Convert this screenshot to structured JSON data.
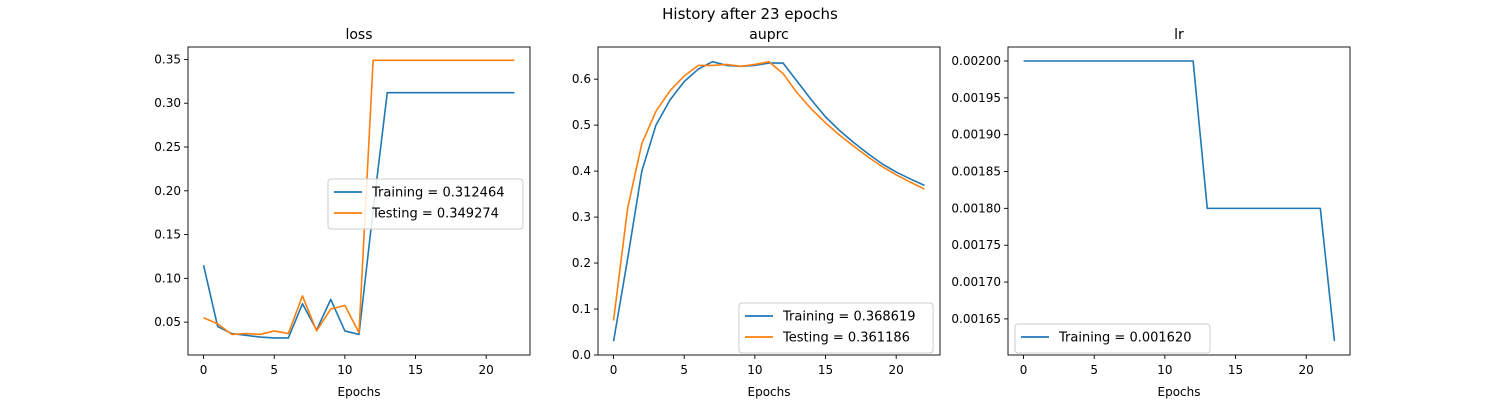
{
  "figure": {
    "title": "History after 23 epochs"
  },
  "colors": {
    "training": "#1f77b4",
    "testing": "#ff7f0e",
    "axis": "#000000",
    "legend_border": "#cccccc"
  },
  "chart_data": [
    {
      "type": "line",
      "title": "loss",
      "xlabel": "Epochs",
      "ylabel": "",
      "xlim": [
        -1.1,
        23.1
      ],
      "ylim": [
        0.0125,
        0.3642
      ],
      "xticks": [
        0,
        5,
        10,
        15,
        20
      ],
      "yticks": [
        0.05,
        0.1,
        0.15,
        0.2,
        0.25,
        0.3,
        0.35
      ],
      "ytick_labels": [
        "0.05",
        "0.10",
        "0.15",
        "0.20",
        "0.25",
        "0.30",
        "0.35"
      ],
      "legend_position": "center-right",
      "x": [
        0,
        1,
        2,
        3,
        4,
        5,
        6,
        7,
        8,
        9,
        10,
        11,
        12,
        13,
        14,
        15,
        16,
        17,
        18,
        19,
        20,
        21,
        22
      ],
      "series": [
        {
          "name": "Training = 0.312464",
          "color": "#1f77b4",
          "values": [
            0.115,
            0.045,
            0.037,
            0.035,
            0.033,
            0.032,
            0.032,
            0.071,
            0.041,
            0.076,
            0.04,
            0.036,
            0.178,
            0.312,
            0.312,
            0.312,
            0.312,
            0.312,
            0.312,
            0.312,
            0.312,
            0.312,
            0.312
          ]
        },
        {
          "name": "Testing = 0.349274",
          "color": "#ff7f0e",
          "values": [
            0.055,
            0.048,
            0.036,
            0.037,
            0.036,
            0.04,
            0.037,
            0.08,
            0.04,
            0.065,
            0.069,
            0.038,
            0.349,
            0.349,
            0.349,
            0.349,
            0.349,
            0.349,
            0.349,
            0.349,
            0.349,
            0.349,
            0.349
          ]
        }
      ]
    },
    {
      "type": "line",
      "title": "auprc",
      "xlabel": "Epochs",
      "ylabel": "",
      "xlim": [
        -1.1,
        23.1
      ],
      "ylim": [
        0.0,
        0.67
      ],
      "xticks": [
        0,
        5,
        10,
        15,
        20
      ],
      "yticks": [
        0.0,
        0.1,
        0.2,
        0.3,
        0.4,
        0.5,
        0.6
      ],
      "ytick_labels": [
        "0.0",
        "0.1",
        "0.2",
        "0.3",
        "0.4",
        "0.5",
        "0.6"
      ],
      "legend_position": "lower-right",
      "x": [
        0,
        1,
        2,
        3,
        4,
        5,
        6,
        7,
        8,
        9,
        10,
        11,
        12,
        13,
        14,
        15,
        16,
        17,
        18,
        19,
        20,
        21,
        22
      ],
      "series": [
        {
          "name": "Training = 0.368619",
          "color": "#1f77b4",
          "values": [
            0.03,
            0.21,
            0.4,
            0.5,
            0.555,
            0.595,
            0.622,
            0.638,
            0.63,
            0.628,
            0.63,
            0.635,
            0.635,
            0.595,
            0.555,
            0.518,
            0.488,
            0.462,
            0.438,
            0.416,
            0.398,
            0.383,
            0.369
          ]
        },
        {
          "name": "Testing = 0.361186",
          "color": "#ff7f0e",
          "values": [
            0.075,
            0.32,
            0.46,
            0.53,
            0.575,
            0.607,
            0.63,
            0.63,
            0.632,
            0.628,
            0.632,
            0.638,
            0.612,
            0.57,
            0.535,
            0.505,
            0.478,
            0.454,
            0.431,
            0.41,
            0.392,
            0.376,
            0.361
          ]
        }
      ]
    },
    {
      "type": "line",
      "title": "lr",
      "xlabel": "Epochs",
      "ylabel": "",
      "xlim": [
        -1.1,
        23.1
      ],
      "ylim": [
        0.001601,
        0.002019
      ],
      "xticks": [
        0,
        5,
        10,
        15,
        20
      ],
      "yticks": [
        0.00165,
        0.0017,
        0.00175,
        0.0018,
        0.00185,
        0.0019,
        0.00195,
        0.002
      ],
      "ytick_labels": [
        "0.00165",
        "0.00170",
        "0.00175",
        "0.00180",
        "0.00185",
        "0.00190",
        "0.00195",
        "0.00200"
      ],
      "legend_position": "lower-left",
      "x": [
        0,
        1,
        2,
        3,
        4,
        5,
        6,
        7,
        8,
        9,
        10,
        11,
        12,
        13,
        14,
        15,
        16,
        17,
        18,
        19,
        20,
        21,
        22
      ],
      "series": [
        {
          "name": "Training = 0.001620",
          "color": "#1f77b4",
          "values": [
            0.002,
            0.002,
            0.002,
            0.002,
            0.002,
            0.002,
            0.002,
            0.002,
            0.002,
            0.002,
            0.002,
            0.002,
            0.002,
            0.0018,
            0.0018,
            0.0018,
            0.0018,
            0.0018,
            0.0018,
            0.0018,
            0.0018,
            0.0018,
            0.00162
          ]
        }
      ]
    }
  ]
}
